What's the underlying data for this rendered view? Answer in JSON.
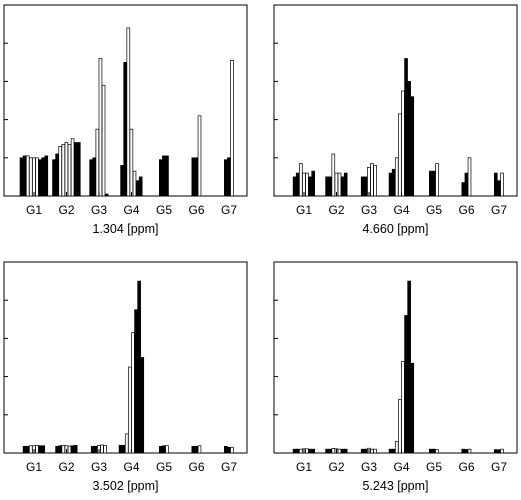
{
  "chart_data": [
    {
      "type": "bar",
      "xlabel": "1.304 [ppm]",
      "categories": [
        "G1",
        "G2",
        "G3",
        "G4",
        "G5",
        "G6",
        "G7"
      ],
      "ylim": [
        0,
        1
      ],
      "grid": false,
      "groups": [
        [
          {
            "v": 0.2,
            "f": "dark"
          },
          {
            "v": 0.21,
            "f": "dark"
          },
          {
            "v": 0.21,
            "f": "light"
          },
          {
            "v": 0.2,
            "f": "light"
          },
          {
            "v": 0.2,
            "f": "light"
          },
          {
            "v": 0.2,
            "f": "light"
          },
          {
            "v": 0.19,
            "f": "dark"
          },
          {
            "v": 0.2,
            "f": "dark"
          },
          {
            "v": 0.21,
            "f": "dark"
          }
        ],
        [
          {
            "v": 0.19,
            "f": "dark"
          },
          {
            "v": 0.22,
            "f": "dark"
          },
          {
            "v": 0.26,
            "f": "light"
          },
          {
            "v": 0.27,
            "f": "light"
          },
          {
            "v": 0.28,
            "f": "light"
          },
          {
            "v": 0.27,
            "f": "light"
          },
          {
            "v": 0.3,
            "f": "light"
          },
          {
            "v": 0.28,
            "f": "dark"
          },
          {
            "v": 0.28,
            "f": "dark"
          }
        ],
        [
          {
            "v": 0.19,
            "f": "dark"
          },
          {
            "v": 0.2,
            "f": "dark"
          },
          {
            "v": 0.35,
            "f": "light"
          },
          {
            "v": 0.72,
            "f": "light"
          },
          {
            "v": 0.58,
            "f": "light"
          },
          {
            "v": 0.01,
            "f": "dark"
          }
        ],
        [
          {
            "v": 0.16,
            "f": "dark"
          },
          {
            "v": 0.7,
            "f": "dark"
          },
          {
            "v": 0.88,
            "f": "light"
          },
          {
            "v": 0.35,
            "f": "light"
          },
          {
            "v": 0.13,
            "f": "light"
          },
          {
            "v": 0.08,
            "f": "dark"
          },
          {
            "v": 0.1,
            "f": "dark"
          }
        ],
        [
          {
            "v": 0.19,
            "f": "dark"
          },
          {
            "v": 0.21,
            "f": "dark"
          },
          {
            "v": 0.21,
            "f": "dark"
          }
        ],
        [
          {
            "v": 0.2,
            "f": "dark"
          },
          {
            "v": 0.2,
            "f": "dark"
          },
          {
            "v": 0.42,
            "f": "light"
          }
        ],
        [
          {
            "v": 0.19,
            "f": "dark"
          },
          {
            "v": 0.2,
            "f": "dark"
          },
          {
            "v": 0.71,
            "f": "light"
          }
        ]
      ]
    },
    {
      "type": "bar",
      "xlabel": "4.660 [ppm]",
      "categories": [
        "G1",
        "G2",
        "G3",
        "G4",
        "G5",
        "G6",
        "G7"
      ],
      "ylim": [
        0,
        1
      ],
      "grid": false,
      "groups": [
        [
          {
            "v": 0.1,
            "f": "dark"
          },
          {
            "v": 0.12,
            "f": "dark"
          },
          {
            "v": 0.17,
            "f": "light"
          },
          {
            "v": 0.12,
            "f": "light"
          },
          {
            "v": 0.12,
            "f": "light"
          },
          {
            "v": 0.1,
            "f": "dark"
          },
          {
            "v": 0.13,
            "f": "dark"
          }
        ],
        [
          {
            "v": 0.1,
            "f": "dark"
          },
          {
            "v": 0.1,
            "f": "dark"
          },
          {
            "v": 0.22,
            "f": "light"
          },
          {
            "v": 0.12,
            "f": "light"
          },
          {
            "v": 0.12,
            "f": "light"
          },
          {
            "v": 0.1,
            "f": "dark"
          },
          {
            "v": 0.12,
            "f": "dark"
          }
        ],
        [
          {
            "v": 0.1,
            "f": "dark"
          },
          {
            "v": 0.1,
            "f": "dark"
          },
          {
            "v": 0.15,
            "f": "light"
          },
          {
            "v": 0.17,
            "f": "light"
          },
          {
            "v": 0.16,
            "f": "light"
          }
        ],
        [
          {
            "v": 0.12,
            "f": "dark"
          },
          {
            "v": 0.14,
            "f": "dark"
          },
          {
            "v": 0.2,
            "f": "light"
          },
          {
            "v": 0.43,
            "f": "light"
          },
          {
            "v": 0.55,
            "f": "light"
          },
          {
            "v": 0.72,
            "f": "dark"
          },
          {
            "v": 0.6,
            "f": "dark"
          },
          {
            "v": 0.52,
            "f": "dark"
          }
        ],
        [
          {
            "v": 0.13,
            "f": "dark"
          },
          {
            "v": 0.13,
            "f": "dark"
          },
          {
            "v": 0.17,
            "f": "light"
          }
        ],
        [
          {
            "v": 0.07,
            "f": "dark"
          },
          {
            "v": 0.12,
            "f": "dark"
          },
          {
            "v": 0.2,
            "f": "light"
          }
        ],
        [
          {
            "v": 0.12,
            "f": "dark"
          },
          {
            "v": 0.08,
            "f": "dark"
          },
          {
            "v": 0.12,
            "f": "light"
          }
        ]
      ]
    },
    {
      "type": "bar",
      "xlabel": "3.502 [ppm]",
      "categories": [
        "G1",
        "G2",
        "G3",
        "G4",
        "G5",
        "G6",
        "G7"
      ],
      "ylim": [
        0,
        1
      ],
      "grid": false,
      "groups": [
        [
          {
            "v": 0.035,
            "f": "dark"
          },
          {
            "v": 0.035,
            "f": "dark"
          },
          {
            "v": 0.038,
            "f": "light"
          },
          {
            "v": 0.038,
            "f": "light"
          },
          {
            "v": 0.04,
            "f": "light"
          },
          {
            "v": 0.038,
            "f": "dark"
          },
          {
            "v": 0.038,
            "f": "dark"
          }
        ],
        [
          {
            "v": 0.035,
            "f": "dark"
          },
          {
            "v": 0.038,
            "f": "dark"
          },
          {
            "v": 0.04,
            "f": "light"
          },
          {
            "v": 0.038,
            "f": "light"
          },
          {
            "v": 0.036,
            "f": "light"
          },
          {
            "v": 0.038,
            "f": "dark"
          },
          {
            "v": 0.04,
            "f": "dark"
          }
        ],
        [
          {
            "v": 0.035,
            "f": "dark"
          },
          {
            "v": 0.035,
            "f": "dark"
          },
          {
            "v": 0.04,
            "f": "light"
          },
          {
            "v": 0.042,
            "f": "light"
          },
          {
            "v": 0.04,
            "f": "light"
          }
        ],
        [
          {
            "v": 0.04,
            "f": "dark"
          },
          {
            "v": 0.04,
            "f": "dark"
          },
          {
            "v": 0.1,
            "f": "light"
          },
          {
            "v": 0.45,
            "f": "light"
          },
          {
            "v": 0.63,
            "f": "light"
          },
          {
            "v": 0.75,
            "f": "dark"
          },
          {
            "v": 0.9,
            "f": "dark"
          },
          {
            "v": 0.5,
            "f": "dark"
          }
        ],
        [
          {
            "v": 0.035,
            "f": "dark"
          },
          {
            "v": 0.038,
            "f": "dark"
          },
          {
            "v": 0.038,
            "f": "light"
          }
        ],
        [
          {
            "v": 0.035,
            "f": "dark"
          },
          {
            "v": 0.035,
            "f": "dark"
          },
          {
            "v": 0.038,
            "f": "light"
          }
        ],
        [
          {
            "v": 0.035,
            "f": "dark"
          },
          {
            "v": 0.03,
            "f": "dark"
          },
          {
            "v": 0.03,
            "f": "light"
          }
        ]
      ]
    },
    {
      "type": "bar",
      "xlabel": "5.243 [ppm]",
      "categories": [
        "G1",
        "G2",
        "G3",
        "G4",
        "G5",
        "G6",
        "G7"
      ],
      "ylim": [
        0,
        1
      ],
      "grid": false,
      "groups": [
        [
          {
            "v": 0.02,
            "f": "dark"
          },
          {
            "v": 0.02,
            "f": "dark"
          },
          {
            "v": 0.02,
            "f": "light"
          },
          {
            "v": 0.022,
            "f": "light"
          },
          {
            "v": 0.022,
            "f": "light"
          },
          {
            "v": 0.02,
            "f": "dark"
          },
          {
            "v": 0.02,
            "f": "dark"
          }
        ],
        [
          {
            "v": 0.02,
            "f": "dark"
          },
          {
            "v": 0.02,
            "f": "dark"
          },
          {
            "v": 0.024,
            "f": "light"
          },
          {
            "v": 0.022,
            "f": "light"
          },
          {
            "v": 0.02,
            "f": "light"
          },
          {
            "v": 0.02,
            "f": "dark"
          },
          {
            "v": 0.02,
            "f": "dark"
          }
        ],
        [
          {
            "v": 0.02,
            "f": "dark"
          },
          {
            "v": 0.02,
            "f": "dark"
          },
          {
            "v": 0.025,
            "f": "light"
          },
          {
            "v": 0.02,
            "f": "light"
          },
          {
            "v": 0.02,
            "f": "light"
          }
        ],
        [
          {
            "v": 0.02,
            "f": "dark"
          },
          {
            "v": 0.02,
            "f": "dark"
          },
          {
            "v": 0.06,
            "f": "light"
          },
          {
            "v": 0.28,
            "f": "light"
          },
          {
            "v": 0.48,
            "f": "light"
          },
          {
            "v": 0.72,
            "f": "dark"
          },
          {
            "v": 0.9,
            "f": "dark"
          },
          {
            "v": 0.47,
            "f": "dark"
          }
        ],
        [
          {
            "v": 0.02,
            "f": "dark"
          },
          {
            "v": 0.02,
            "f": "dark"
          },
          {
            "v": 0.018,
            "f": "light"
          }
        ],
        [
          {
            "v": 0.02,
            "f": "dark"
          },
          {
            "v": 0.018,
            "f": "dark"
          },
          {
            "v": 0.02,
            "f": "light"
          }
        ],
        [
          {
            "v": 0.018,
            "f": "dark"
          },
          {
            "v": 0.015,
            "f": "dark"
          },
          {
            "v": 0.02,
            "f": "light"
          }
        ]
      ]
    }
  ],
  "colors": {
    "dark_bar": "#000000",
    "light_bar": "#ffffff",
    "axes": "#000000",
    "background": "#ffffff"
  }
}
